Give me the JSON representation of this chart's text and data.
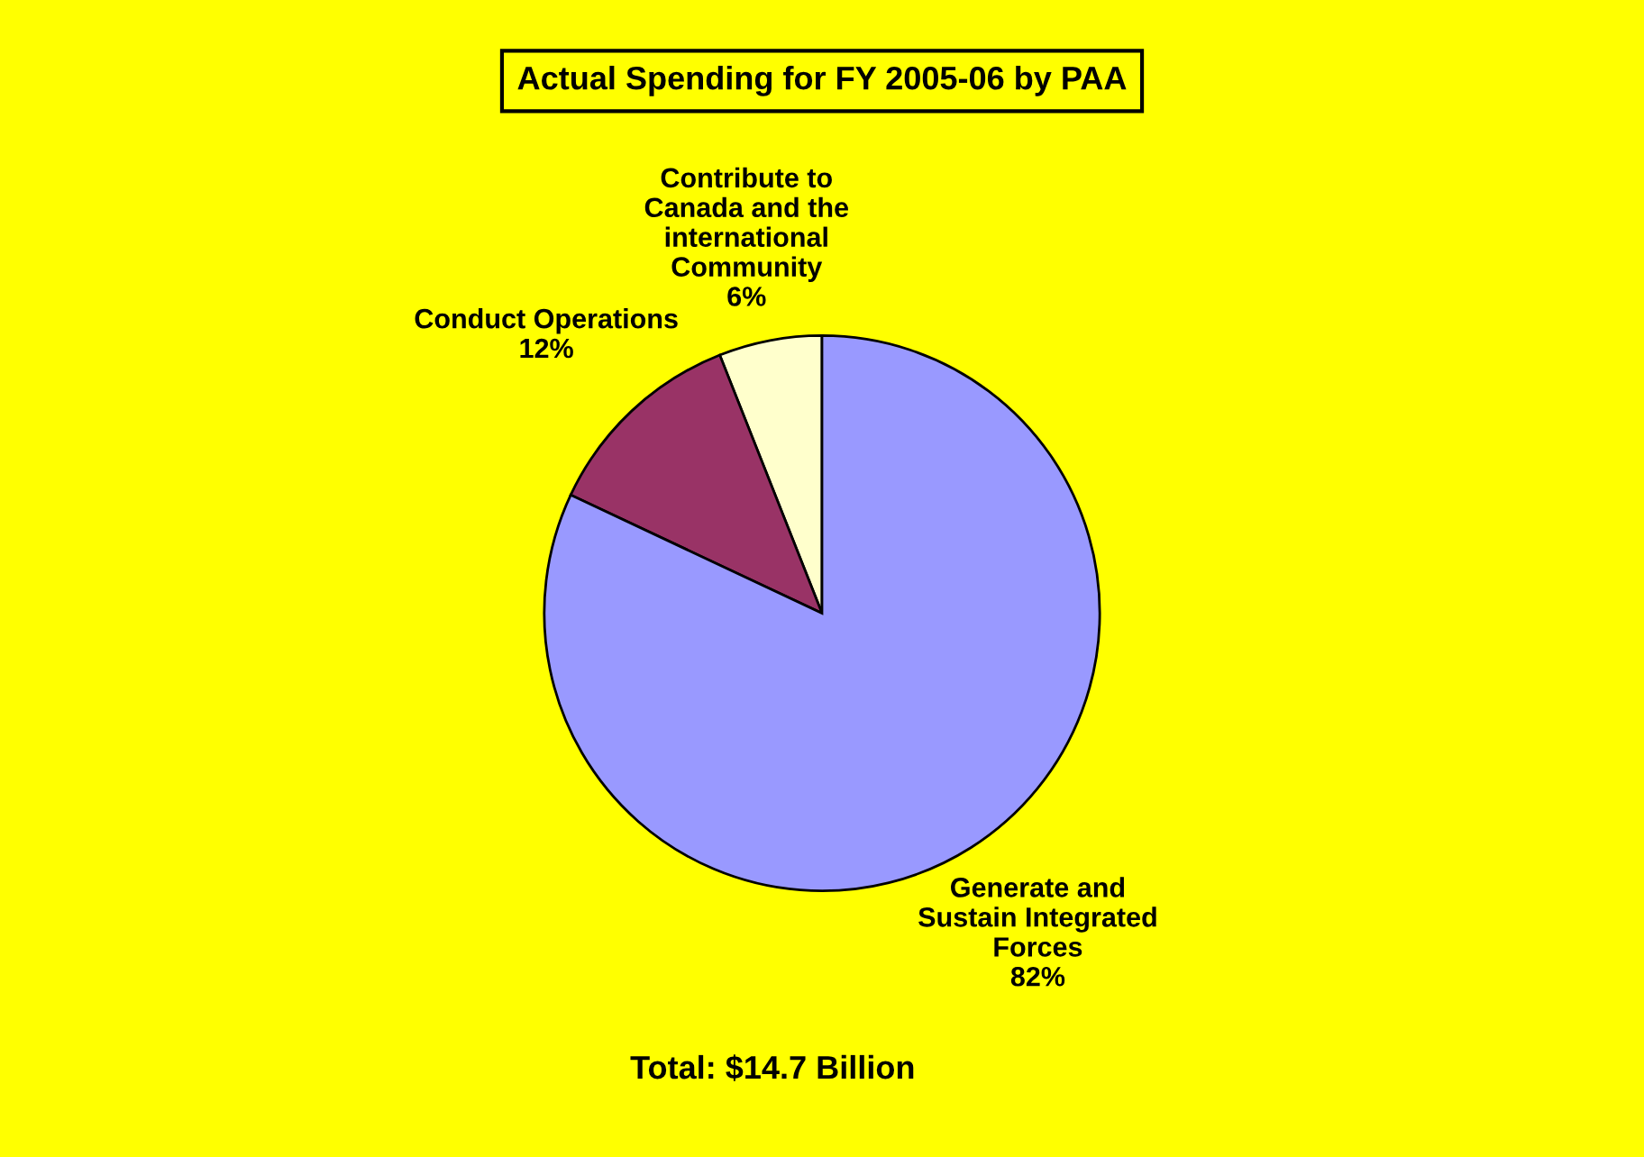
{
  "chart_data": {
    "type": "pie",
    "title": "Actual Spending for FY 2005-06 by PAA",
    "categories": [
      "Contribute to\nCanada and the\ninternational\nCommunity",
      "Conduct Operations",
      "Generate and\nSustain Integrated\nForces"
    ],
    "values": [
      6,
      12,
      82
    ],
    "value_labels": [
      "6%",
      "12%",
      "82%"
    ],
    "colors": [
      "#ffffcc",
      "#993366",
      "#9999ff"
    ],
    "annotations": [
      "Total: $14.7 Billion"
    ]
  }
}
